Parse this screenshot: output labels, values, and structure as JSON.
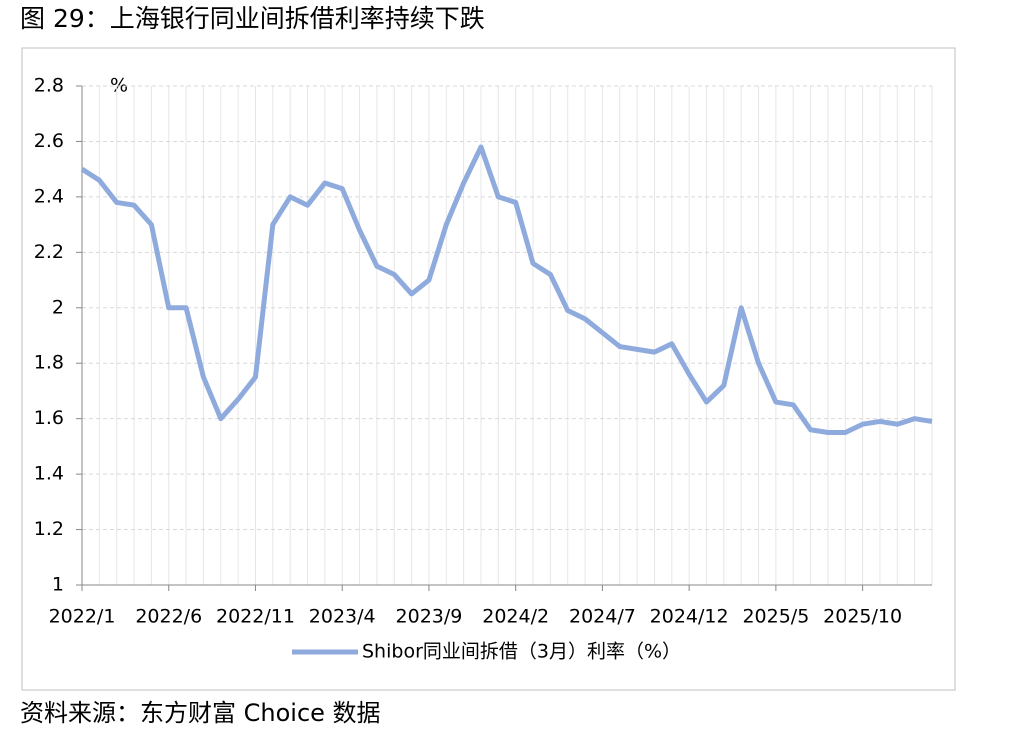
{
  "title": "图 29：上海银行同业间拆借利率持续下跌",
  "source": "资料来源：东方财富 Choice 数据",
  "chart_data": {
    "type": "line",
    "unit": "%",
    "categories": [
      "2022/1",
      null,
      null,
      null,
      null,
      "2022/6",
      null,
      null,
      null,
      null,
      "2022/11",
      null,
      null,
      null,
      null,
      "2023/4",
      null,
      null,
      null,
      null,
      "2023/9",
      null,
      null,
      null,
      null,
      "2024/2",
      null,
      null,
      null,
      null,
      "2024/7",
      null,
      null,
      null,
      null,
      "2024/12",
      null,
      null,
      null,
      null,
      "2025/5",
      null,
      null,
      null,
      null,
      "2025/10",
      null,
      null,
      null,
      null
    ],
    "series": [
      {
        "name": "Shibor同业间拆借（3月）利率（%）",
        "color": "#8faadc",
        "values": [
          2.5,
          2.46,
          2.38,
          2.37,
          2.3,
          2.0,
          2.0,
          1.75,
          1.6,
          1.67,
          1.75,
          2.3,
          2.4,
          2.37,
          2.45,
          2.43,
          2.28,
          2.15,
          2.12,
          2.05,
          2.1,
          2.3,
          2.45,
          2.58,
          2.4,
          2.38,
          2.16,
          2.12,
          1.99,
          1.96,
          1.91,
          1.86,
          1.85,
          1.84,
          1.87,
          1.76,
          1.66,
          1.72,
          2.0,
          1.8,
          1.66,
          1.65,
          1.56,
          1.55,
          1.55,
          1.58,
          1.59,
          1.58,
          1.6,
          1.59
        ]
      }
    ],
    "ylim": [
      1,
      2.8
    ],
    "yticks": [
      1,
      1.2,
      1.4,
      1.6,
      1.8,
      2,
      2.2,
      2.4,
      2.6,
      2.8
    ],
    "grid": true
  }
}
